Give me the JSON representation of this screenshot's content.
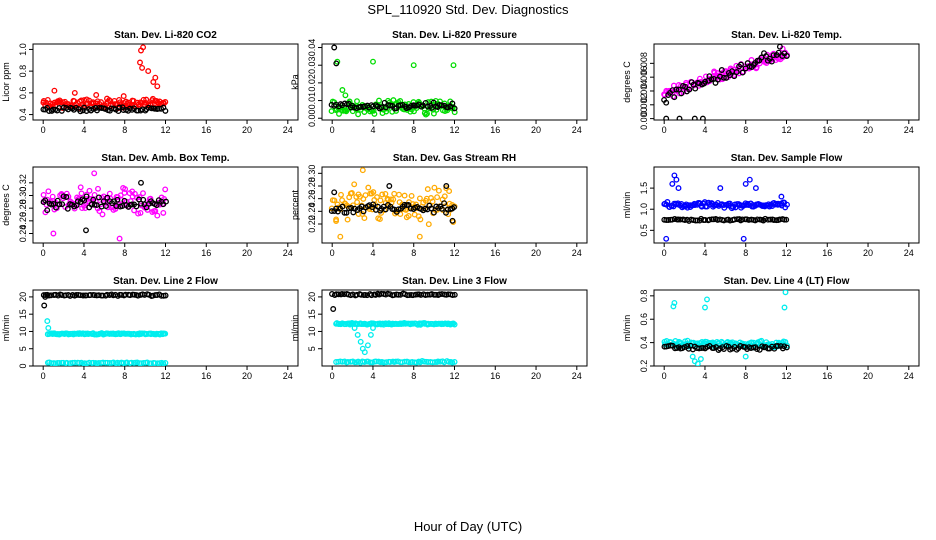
{
  "figure": {
    "title": "SPL_110920  Std. Dev. Diagnostics",
    "xlabel": "Hour of Day (UTC)"
  },
  "colors": {
    "red": "#ff0000",
    "green": "#00dd00",
    "magenta": "#ff00ff",
    "orange": "#ffaa00",
    "blue": "#0000ff",
    "cyan": "#00eeee",
    "black": "#000000"
  },
  "chart_data": [
    {
      "type": "scatter",
      "title": "Stan. Dev. Li-820 CO2",
      "ylabel": "Licor ppm",
      "xlim": [
        -1,
        25
      ],
      "xticks": [
        0,
        4,
        8,
        12,
        16,
        20,
        24
      ],
      "ylim": [
        0.35,
        1.05
      ],
      "yticks": [
        0.4,
        0.6,
        0.8,
        1.0
      ],
      "ytick_labels": [
        "0.4",
        "0.6",
        "0.8",
        "1.0"
      ],
      "series": [
        {
          "name": "primary",
          "color": "red",
          "xrange": [
            0,
            12
          ],
          "base": 0.5,
          "spread": 0.05,
          "spikes": [
            [
              9.8,
              1.02
            ],
            [
              9.6,
              0.99
            ],
            [
              9.5,
              0.88
            ],
            [
              9.7,
              0.83
            ],
            [
              10.3,
              0.8
            ],
            [
              11.0,
              0.74
            ],
            [
              10.8,
              0.7
            ],
            [
              11.2,
              0.66
            ],
            [
              1.1,
              0.62
            ],
            [
              3.1,
              0.6
            ],
            [
              5.2,
              0.58
            ],
            [
              7.9,
              0.57
            ]
          ]
        },
        {
          "name": "secondary",
          "color": "black",
          "xrange": [
            0,
            12
          ],
          "base": 0.45,
          "spread": 0.025,
          "spikes": []
        }
      ]
    },
    {
      "type": "scatter",
      "title": "Stan. Dev. Li-820 Pressure",
      "ylabel": "kPa",
      "xlim": [
        -1,
        25
      ],
      "xticks": [
        0,
        4,
        8,
        12,
        16,
        20,
        24
      ],
      "ylim": [
        -0.001,
        0.042
      ],
      "yticks": [
        0.0,
        0.01,
        0.02,
        0.03,
        0.04
      ],
      "ytick_labels": [
        "0.00",
        "0.01",
        "0.02",
        "0.03",
        "0.04"
      ],
      "series": [
        {
          "name": "primary",
          "color": "green",
          "xrange": [
            0,
            12
          ],
          "base": 0.006,
          "spread": 0.005,
          "spikes": [
            [
              0.5,
              0.032
            ],
            [
              4.0,
              0.032
            ],
            [
              8.0,
              0.03
            ],
            [
              11.9,
              0.03
            ],
            [
              1.0,
              0.016
            ],
            [
              1.3,
              0.013
            ]
          ]
        },
        {
          "name": "secondary",
          "color": "black",
          "xrange": [
            0,
            12
          ],
          "base": 0.007,
          "spread": 0.002,
          "spikes": [
            [
              0.2,
              0.04
            ],
            [
              0.4,
              0.031
            ]
          ]
        }
      ]
    },
    {
      "type": "scatter",
      "title": "Stan. Dev. Li-820 Temp.",
      "ylabel": "degrees C",
      "xlim": [
        -1,
        25
      ],
      "xticks": [
        0,
        4,
        8,
        12,
        16,
        20,
        24
      ],
      "ylim": [
        -0.0002,
        0.0108
      ],
      "yticks": [
        0.0,
        0.002,
        0.004,
        0.006,
        0.008
      ],
      "ytick_labels": [
        "0.000",
        "0.002",
        "0.004",
        "0.006",
        "0.008"
      ],
      "series": [
        {
          "name": "primary",
          "color": "magenta",
          "xrange": [
            0,
            12
          ],
          "trend": [
            0.0035,
            0.0095
          ],
          "spread": 0.0009,
          "spikes": []
        },
        {
          "name": "secondary",
          "color": "black",
          "xrange": [
            0,
            12
          ],
          "trend": [
            0.003,
            0.0098
          ],
          "spread": 0.001,
          "spikes": [
            [
              0.2,
              0.0
            ],
            [
              1.5,
              0.0
            ],
            [
              3.0,
              0.0
            ],
            [
              3.8,
              0.0
            ]
          ]
        }
      ]
    },
    {
      "type": "scatter",
      "title": "Stan. Dev. Amb. Box Temp.",
      "ylabel": "degrees C",
      "xlim": [
        -1,
        25
      ],
      "xticks": [
        0,
        4,
        8,
        12,
        16,
        20,
        24
      ],
      "ylim": [
        0.225,
        0.345
      ],
      "yticks": [
        0.24,
        0.26,
        0.28,
        0.3,
        0.32
      ],
      "ytick_labels": [
        "0.24",
        "0.26",
        "0.28",
        "0.30",
        "0.32"
      ],
      "series": [
        {
          "name": "primary",
          "color": "magenta",
          "xrange": [
            0,
            12
          ],
          "base": 0.29,
          "spread": 0.025,
          "spikes": [
            [
              7.5,
              0.232
            ],
            [
              1.0,
              0.24
            ],
            [
              5.0,
              0.335
            ]
          ]
        },
        {
          "name": "secondary",
          "color": "black",
          "xrange": [
            0,
            12
          ],
          "base": 0.288,
          "spread": 0.012,
          "spikes": [
            [
              4.2,
              0.245
            ],
            [
              9.6,
              0.32
            ]
          ]
        }
      ]
    },
    {
      "type": "scatter",
      "title": "Stan. Dev. Gas Stream RH",
      "ylabel": "percent",
      "xlim": [
        -1,
        25
      ],
      "xticks": [
        0,
        4,
        8,
        12,
        16,
        20,
        24
      ],
      "ylim": [
        0.19,
        0.31
      ],
      "yticks": [
        0.22,
        0.24,
        0.26,
        0.28,
        0.3
      ],
      "ytick_labels": [
        "0.22",
        "0.24",
        "0.26",
        "0.28",
        "0.30"
      ],
      "series": [
        {
          "name": "primary",
          "color": "orange",
          "xrange": [
            0,
            12
          ],
          "base": 0.25,
          "spread": 0.035,
          "spikes": [
            [
              3.0,
              0.305
            ],
            [
              8.6,
              0.2
            ],
            [
              0.8,
              0.2
            ]
          ]
        },
        {
          "name": "secondary",
          "color": "black",
          "xrange": [
            0,
            12
          ],
          "base": 0.245,
          "spread": 0.01,
          "spikes": [
            [
              0.2,
              0.27
            ],
            [
              5.6,
              0.28
            ],
            [
              11.2,
              0.28
            ],
            [
              11.8,
              0.225
            ]
          ]
        }
      ]
    },
    {
      "type": "scatter",
      "title": "Stan. Dev. Sample Flow",
      "ylabel": "ml/min",
      "xlim": [
        -1,
        25
      ],
      "xticks": [
        0,
        4,
        8,
        12,
        16,
        20,
        24
      ],
      "ylim": [
        0.2,
        2.0
      ],
      "yticks": [
        0.5,
        1.0,
        1.5
      ],
      "ytick_labels": [
        "0.5",
        "1.0",
        "1.5"
      ],
      "series": [
        {
          "name": "primary",
          "color": "blue",
          "xrange": [
            0,
            12
          ],
          "base": 1.1,
          "spread": 0.08,
          "spikes": [
            [
              0.2,
              0.3
            ],
            [
              7.8,
              0.3
            ],
            [
              0.8,
              1.6
            ],
            [
              1.0,
              1.8
            ],
            [
              1.2,
              1.7
            ],
            [
              1.4,
              1.5
            ],
            [
              5.5,
              1.5
            ],
            [
              8.0,
              1.6
            ],
            [
              8.4,
              1.7
            ],
            [
              9.0,
              1.5
            ],
            [
              11.5,
              1.3
            ]
          ]
        },
        {
          "name": "secondary",
          "color": "black",
          "xrange": [
            0,
            12
          ],
          "base": 0.75,
          "spread": 0.03,
          "spikes": []
        }
      ]
    },
    {
      "type": "scatter",
      "title": "Stan. Dev. Line 2 Flow",
      "ylabel": "ml/min",
      "xlim": [
        -1,
        25
      ],
      "xticks": [
        0,
        4,
        8,
        12,
        16,
        20,
        24
      ],
      "ylim": [
        0,
        22
      ],
      "yticks": [
        0,
        5,
        10,
        15,
        20
      ],
      "ytick_labels": [
        "0",
        "5",
        "10",
        "15",
        "20"
      ],
      "series": [
        {
          "name": "primary",
          "color": "cyan",
          "xrange": [
            0.4,
            12
          ],
          "base": 9.3,
          "spread": 0.25,
          "spikes": [
            [
              0.4,
              13
            ],
            [
              0.5,
              11
            ]
          ]
        },
        {
          "name": "secondary",
          "color": "cyan",
          "xrange": [
            0.4,
            12
          ],
          "base": 0.9,
          "spread": 0.15,
          "spikes": []
        },
        {
          "name": "tertiary",
          "color": "black",
          "xrange": [
            0,
            12
          ],
          "base": 20.5,
          "spread": 0.3,
          "spikes": [
            [
              0.1,
              17.5
            ],
            [
              0.2,
              20.0
            ]
          ]
        }
      ]
    },
    {
      "type": "scatter",
      "title": "Stan. Dev. Line 3 Flow",
      "ylabel": "ml/min",
      "xlim": [
        -1,
        25
      ],
      "xticks": [
        0,
        4,
        8,
        12,
        16,
        20,
        24
      ],
      "ylim": [
        0,
        22
      ],
      "yticks": [
        5,
        10,
        15,
        20
      ],
      "ytick_labels": [
        "5",
        "10",
        "15",
        "20"
      ],
      "series": [
        {
          "name": "primary",
          "color": "cyan",
          "xrange": [
            0.4,
            12
          ],
          "base": 12.2,
          "spread": 0.3,
          "spikes": [
            [
              2.5,
              9
            ],
            [
              2.8,
              7
            ],
            [
              3.0,
              5
            ],
            [
              3.2,
              4
            ],
            [
              3.5,
              6
            ],
            [
              3.8,
              9
            ],
            [
              2.2,
              11
            ],
            [
              4.0,
              11
            ]
          ]
        },
        {
          "name": "secondary",
          "color": "cyan",
          "xrange": [
            0.4,
            12
          ],
          "base": 1.2,
          "spread": 0.25,
          "spikes": []
        },
        {
          "name": "tertiary",
          "color": "black",
          "xrange": [
            0,
            12
          ],
          "base": 20.7,
          "spread": 0.3,
          "spikes": [
            [
              0.1,
              16.5
            ]
          ]
        }
      ]
    },
    {
      "type": "scatter",
      "title": "Stan. Dev. Line 4 (LT) Flow",
      "ylabel": "ml/min",
      "xlim": [
        -1,
        25
      ],
      "xticks": [
        0,
        4,
        8,
        12,
        16,
        20,
        24
      ],
      "ylim": [
        0.2,
        0.85
      ],
      "yticks": [
        0.2,
        0.4,
        0.6,
        0.8
      ],
      "ytick_labels": [
        "0.2",
        "0.4",
        "0.6",
        "0.8"
      ],
      "series": [
        {
          "name": "primary",
          "color": "cyan",
          "xrange": [
            0,
            12
          ],
          "base": 0.39,
          "spread": 0.035,
          "spikes": [
            [
              0.9,
              0.71
            ],
            [
              1.0,
              0.74
            ],
            [
              4.0,
              0.7
            ],
            [
              4.2,
              0.77
            ],
            [
              11.9,
              0.83
            ],
            [
              11.8,
              0.7
            ],
            [
              2.8,
              0.28
            ],
            [
              3.0,
              0.24
            ],
            [
              3.3,
              0.22
            ],
            [
              3.6,
              0.26
            ],
            [
              8.0,
              0.28
            ]
          ]
        },
        {
          "name": "secondary",
          "color": "black",
          "xrange": [
            0,
            12
          ],
          "base": 0.36,
          "spread": 0.025,
          "spikes": []
        }
      ]
    }
  ]
}
